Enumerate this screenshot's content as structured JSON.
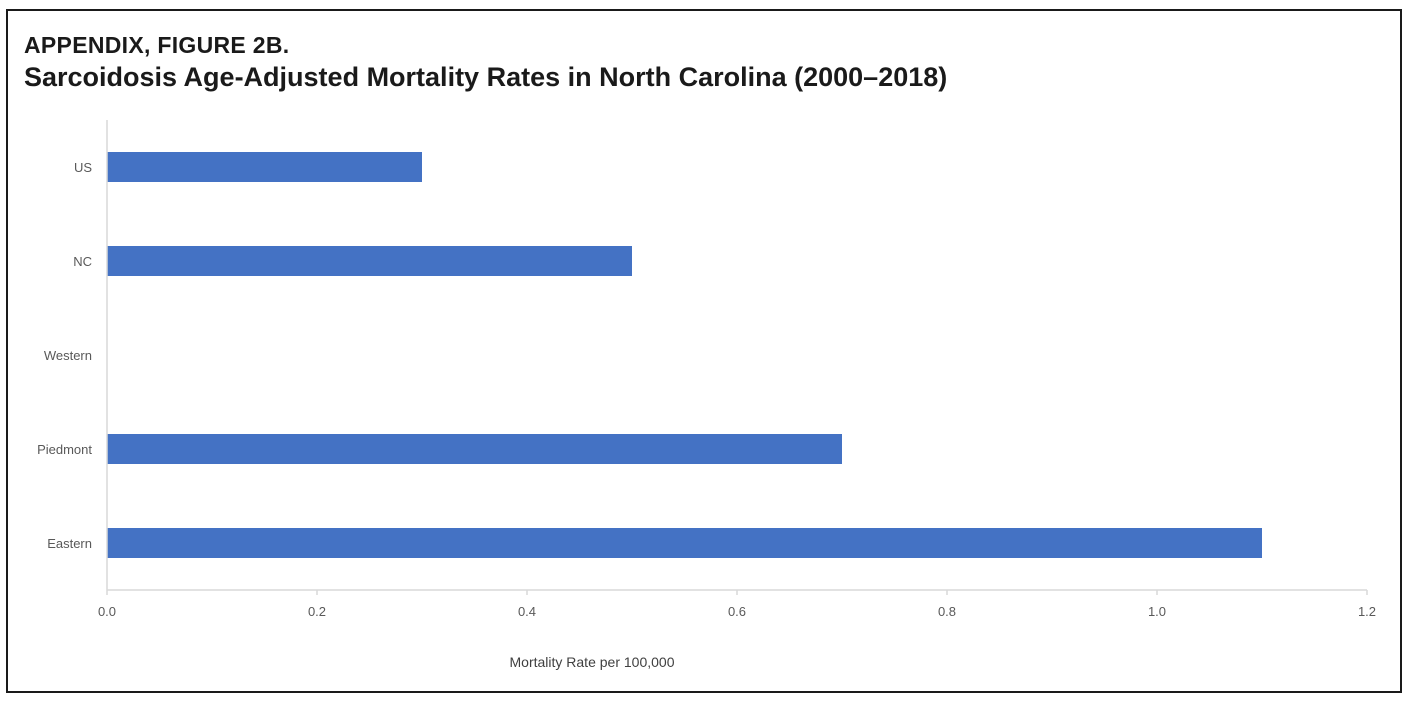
{
  "figure": {
    "label": "APPENDIX, FIGURE 2B.",
    "title": "Sarcoidosis Age-Adjusted Mortality Rates in North Carolina (2000–2018)"
  },
  "chart_data": {
    "type": "bar",
    "orientation": "horizontal",
    "categories": [
      "US",
      "NC",
      "Western",
      "Piedmont",
      "Eastern"
    ],
    "values": [
      0.3,
      0.5,
      0,
      0.7,
      1.1
    ],
    "xlabel": "Mortality Rate per 100,000",
    "ylabel": "",
    "xlim": [
      0,
      1.2
    ],
    "xticks": [
      "0.0",
      "0.2",
      "0.4",
      "0.6",
      "0.8",
      "1.0",
      "1.2"
    ],
    "bar_color": "#4472C4",
    "grid": false,
    "legend": "none"
  }
}
